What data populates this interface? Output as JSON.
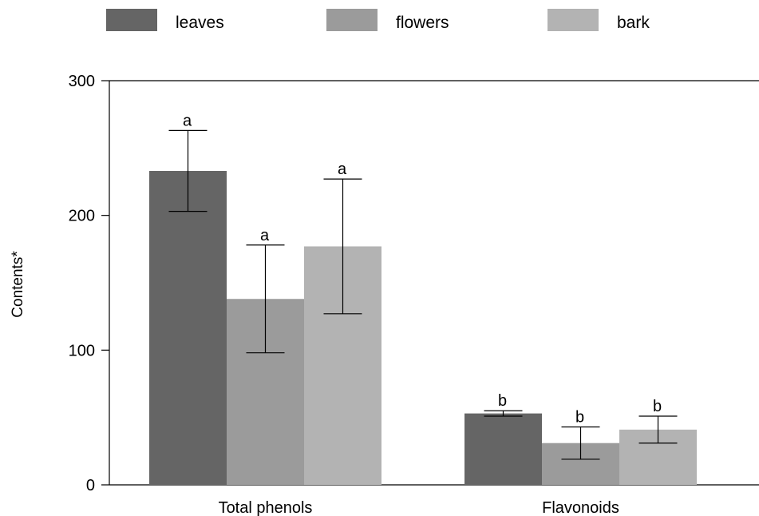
{
  "chart_data": {
    "type": "bar",
    "title": "",
    "xlabel": "",
    "ylabel": "Contents*",
    "ylim": [
      0,
      300
    ],
    "yticks": [
      0,
      100,
      200,
      300
    ],
    "grid": false,
    "legend_position": "top",
    "categories": [
      "Total phenols",
      "Flavonoids"
    ],
    "series": [
      {
        "name": "leaves",
        "color": "#656565",
        "values": [
          233,
          53
        ],
        "errors": [
          30,
          2
        ],
        "labels": [
          "a",
          "b"
        ]
      },
      {
        "name": "flowers",
        "color": "#9b9b9b",
        "values": [
          138,
          31
        ],
        "errors": [
          40,
          12
        ],
        "labels": [
          "a",
          "b"
        ]
      },
      {
        "name": "bark",
        "color": "#b3b3b3",
        "values": [
          177,
          41
        ],
        "errors": [
          50,
          10
        ],
        "labels": [
          "a",
          "b"
        ]
      }
    ]
  }
}
